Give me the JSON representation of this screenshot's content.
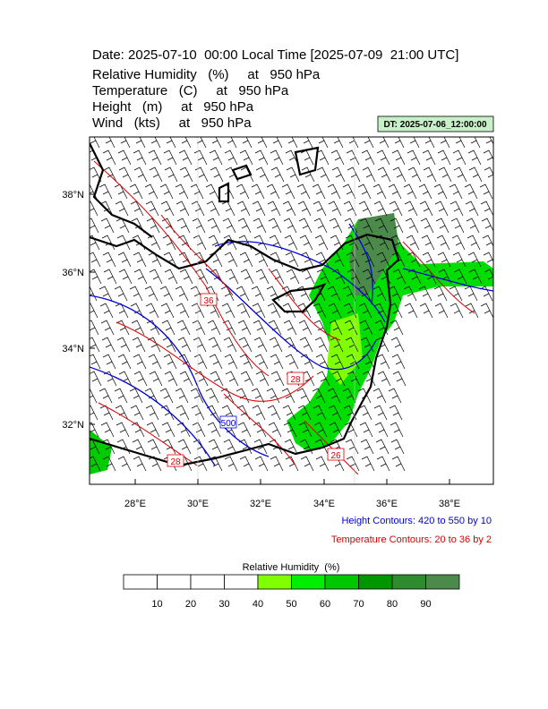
{
  "header": {
    "title": "Date: 2025-07-10  00:00 Local Time [2025-07-09  21:00 UTC]",
    "lines": [
      "Relative Humidity   (%)     at   950 hPa",
      "Temperature   (C)     at   950 hPa",
      "Height   (m)     at   950 hPa",
      "Wind   (kts)     at   950 hPa"
    ],
    "dt": "DT: 2025-07-06_12:00:00"
  },
  "map": {
    "lat_labels": [
      "38°N",
      "36°N",
      "34°N",
      "32°N"
    ],
    "lon_labels": [
      "28°E",
      "30°E",
      "32°E",
      "34°E",
      "36°E",
      "38°E"
    ],
    "contour_labels": [
      "36",
      "28",
      "500",
      "28",
      "26"
    ]
  },
  "notes": [
    "Height Contours: 420 to 550 by 10",
    "Temperature Contours: 20 to 36 by 2"
  ],
  "colorbar": {
    "title": "Relative Humidity  (%)",
    "ticks": [
      10,
      20,
      30,
      40,
      50,
      60,
      70,
      80,
      90
    ],
    "colors": [
      "#ffffff",
      "#ffffff",
      "#ffffff",
      "#ffffff",
      "#80ff00",
      "#00ee00",
      "#00c800",
      "#009600",
      "#2e8b2e",
      "#4c8a4c"
    ]
  }
}
